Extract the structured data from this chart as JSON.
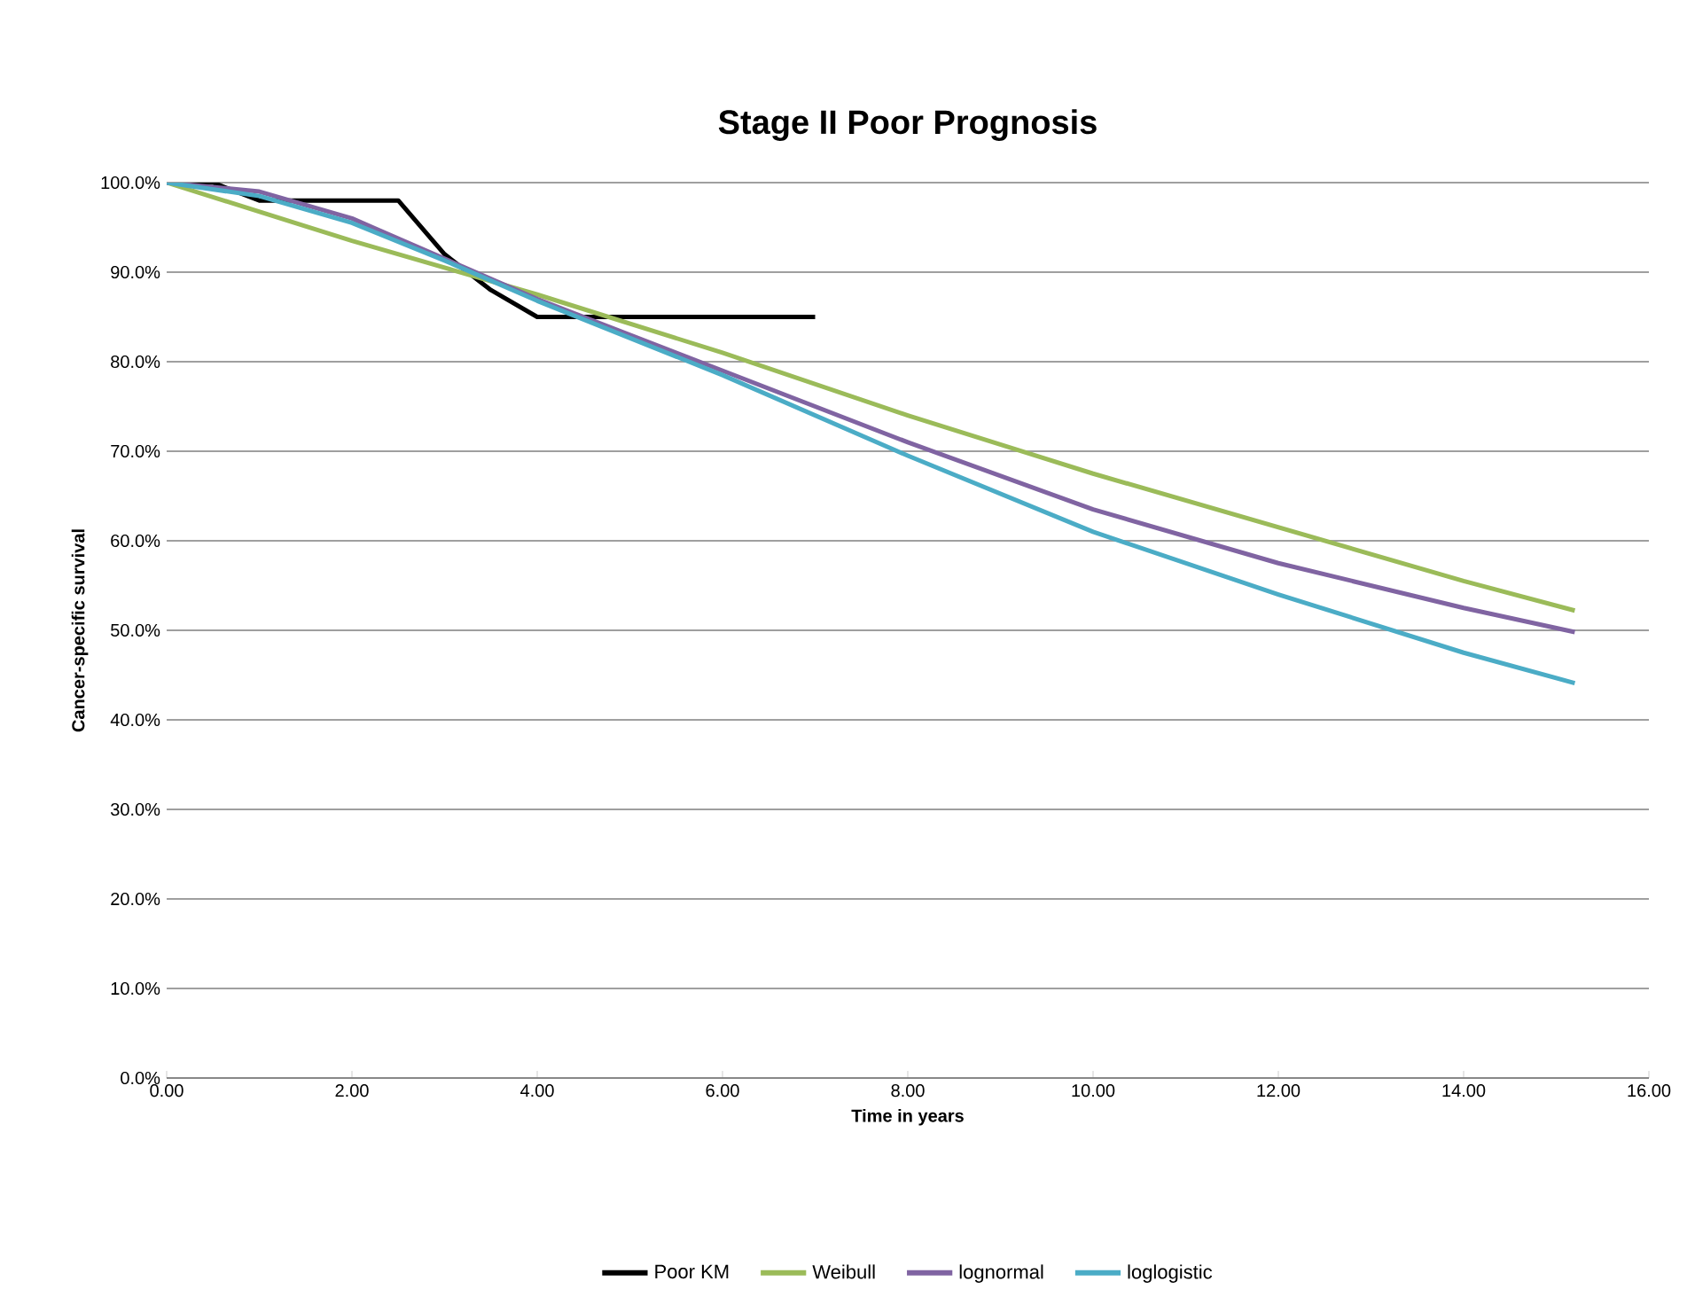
{
  "chart_data": {
    "type": "line",
    "title": "Stage II Poor Prognosis",
    "xlabel": "Time in years",
    "ylabel": "Cancer-specific survival",
    "xlim": [
      0,
      16
    ],
    "ylim": [
      0,
      100
    ],
    "xticks": [
      {
        "value": 0,
        "label": "0.00"
      },
      {
        "value": 2,
        "label": "2.00"
      },
      {
        "value": 4,
        "label": "4.00"
      },
      {
        "value": 6,
        "label": "6.00"
      },
      {
        "value": 8,
        "label": "8.00"
      },
      {
        "value": 10,
        "label": "10.00"
      },
      {
        "value": 12,
        "label": "12.00"
      },
      {
        "value": 14,
        "label": "14.00"
      },
      {
        "value": 16,
        "label": "16.00"
      }
    ],
    "yticks": [
      {
        "value": 0,
        "label": "0.0%"
      },
      {
        "value": 10,
        "label": "10.0%"
      },
      {
        "value": 20,
        "label": "20.0%"
      },
      {
        "value": 30,
        "label": "30.0%"
      },
      {
        "value": 40,
        "label": "40.0%"
      },
      {
        "value": 50,
        "label": "50.0%"
      },
      {
        "value": 60,
        "label": "60.0%"
      },
      {
        "value": 70,
        "label": "70.0%"
      },
      {
        "value": 80,
        "label": "80.0%"
      },
      {
        "value": 90,
        "label": "90.0%"
      },
      {
        "value": 100,
        "label": "100.0%"
      }
    ],
    "grid": "y",
    "legend": "bottom",
    "marker": "none",
    "line_style": "solid",
    "series": [
      {
        "name": "Poor KM",
        "color": "#000000",
        "x": [
          0,
          0.5,
          1,
          2.5,
          3,
          3.5,
          4,
          7
        ],
        "values": [
          100,
          100,
          98,
          98,
          92,
          88,
          85,
          85
        ]
      },
      {
        "name": "Weibull",
        "color": "#9bbb59",
        "x": [
          0,
          2,
          4,
          6,
          8,
          10,
          12,
          14,
          15.2
        ],
        "values": [
          100,
          93.5,
          87.5,
          81,
          74,
          67.5,
          61.5,
          55.5,
          52.2
        ]
      },
      {
        "name": "lognormal",
        "color": "#8064a2",
        "x": [
          0,
          1,
          2,
          3,
          4,
          6,
          8,
          10,
          12,
          14,
          15.2
        ],
        "values": [
          100,
          99,
          96,
          91.5,
          87,
          79,
          71,
          63.5,
          57.5,
          52.5,
          49.8
        ]
      },
      {
        "name": "loglogistic",
        "color": "#4bacc6",
        "x": [
          0,
          1,
          2,
          3,
          4,
          6,
          8,
          10,
          12,
          14,
          15.2
        ],
        "values": [
          100,
          98.5,
          95.5,
          91.3,
          86.8,
          78.5,
          69.5,
          61,
          54,
          47.5,
          44.1
        ]
      }
    ]
  }
}
